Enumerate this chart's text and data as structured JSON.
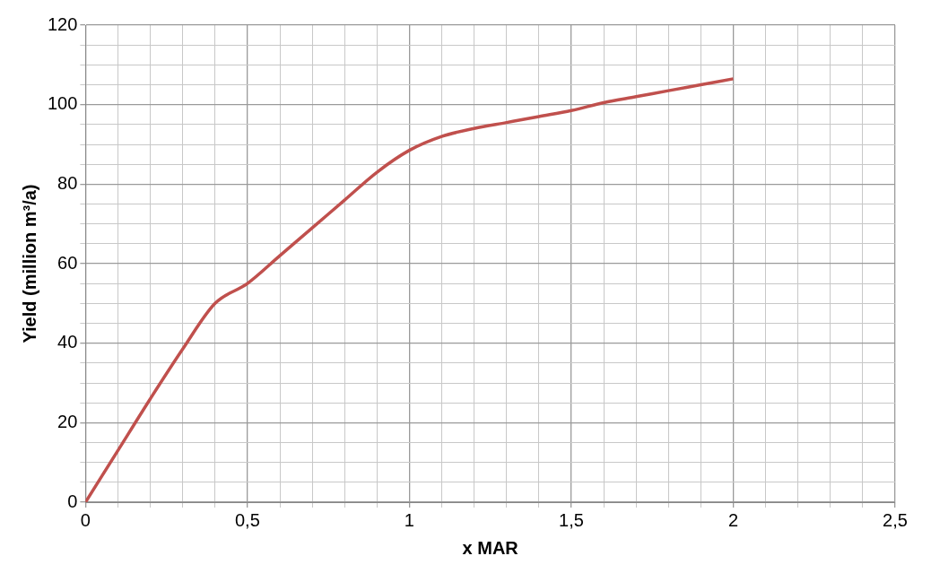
{
  "chart_data": {
    "type": "line",
    "xlabel": "x MAR",
    "ylabel": "Yield (million m³/a)",
    "x": [
      0,
      0.1,
      0.2,
      0.3,
      0.4,
      0.5,
      0.6,
      0.7,
      0.8,
      0.9,
      1.0,
      1.1,
      1.2,
      1.3,
      1.4,
      1.5,
      1.6,
      1.7,
      1.8,
      1.9,
      2.0
    ],
    "series": [
      {
        "color": "#c0504d",
        "values": [
          0,
          13,
          26,
          38.5,
          50,
          55,
          62,
          69,
          76,
          83,
          88.5,
          92,
          94,
          95.5,
          97,
          98.5,
          100.5,
          102,
          103.5,
          105,
          106.5
        ]
      }
    ],
    "xlim": [
      0,
      2.5
    ],
    "xticks": [
      0,
      {
        "value": 0.1,
        "label": null
      },
      {
        "value": 0.2,
        "label": null
      },
      {
        "value": 0.3,
        "label": null
      },
      {
        "value": 0.4,
        "label": null
      },
      {
        "value": 0.5,
        "label": "0,5"
      },
      {
        "value": 0.6,
        "label": null
      },
      {
        "value": 0.7,
        "label": null
      },
      {
        "value": 0.8,
        "label": null
      },
      {
        "value": 0.9,
        "label": null
      },
      1,
      {
        "value": 1.1,
        "label": null
      },
      {
        "value": 1.2,
        "label": null
      },
      {
        "value": 1.3,
        "label": null
      },
      {
        "value": 1.4,
        "label": null
      },
      {
        "value": 1.5,
        "label": "1,5"
      },
      {
        "value": 1.6,
        "label": null
      },
      {
        "value": 1.7,
        "label": null
      },
      {
        "value": 1.8,
        "label": null
      },
      {
        "value": 1.9,
        "label": null
      },
      2,
      {
        "value": 2.1,
        "label": null
      },
      {
        "value": 2.2,
        "label": null
      },
      {
        "value": 2.3,
        "label": null
      },
      {
        "value": 2.4,
        "label": null
      },
      {
        "value": 2.5,
        "label": "2,5"
      }
    ],
    "ylim": [
      0,
      120
    ],
    "yticks": [
      0,
      {
        "value": 5,
        "label": null
      },
      {
        "value": 10,
        "label": null
      },
      {
        "value": 15,
        "label": null
      },
      20,
      {
        "value": 25,
        "label": null
      },
      {
        "value": 30,
        "label": null
      },
      {
        "value": 35,
        "label": null
      },
      40,
      {
        "value": 45,
        "label": null
      },
      {
        "value": 50,
        "label": null
      },
      {
        "value": 55,
        "label": null
      },
      60,
      {
        "value": 65,
        "label": null
      },
      {
        "value": 70,
        "label": null
      },
      {
        "value": 75,
        "label": null
      },
      80,
      {
        "value": 85,
        "label": null
      },
      {
        "value": 90,
        "label": null
      },
      {
        "value": 95,
        "label": null
      },
      100,
      {
        "value": 105,
        "label": null
      },
      {
        "value": 110,
        "label": null
      },
      {
        "value": 115,
        "label": null
      },
      120
    ],
    "grid": true,
    "legend": false,
    "marker": "none",
    "line_style": "solid"
  }
}
